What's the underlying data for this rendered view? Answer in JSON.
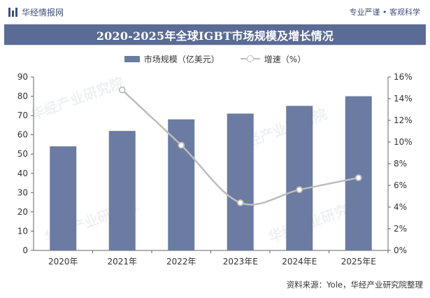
{
  "header": {
    "brand_name": "华经情报网",
    "slogan": "专业严谨 • 客观科学"
  },
  "title": "2020-2025年全球IGBT市场规模及增长情况",
  "legend": {
    "bar_label": "市场规模（亿美元）",
    "line_label": "增速（%）"
  },
  "source": "资料来源：Yole，华经产业研究院整理",
  "watermark": "华经产业研究院",
  "colors": {
    "bar": "#6b7ba2",
    "line": "#bdbdbd",
    "title_band": "#5a6b94",
    "brand": "#3f4f77"
  },
  "chart_data": {
    "type": "bar",
    "categories": [
      "2020年",
      "2021年",
      "2022年",
      "2023年E",
      "2024年E",
      "2025年E"
    ],
    "series": [
      {
        "name": "市场规模（亿美元）",
        "type": "bar",
        "axis": "left",
        "values": [
          54,
          62,
          68,
          71,
          75,
          80
        ]
      },
      {
        "name": "增速（%）",
        "type": "line",
        "axis": "right",
        "values": [
          null,
          14.8,
          9.7,
          4.4,
          5.6,
          6.7
        ]
      }
    ],
    "left_axis": {
      "ticks": [
        0,
        10,
        20,
        30,
        40,
        50,
        60,
        70,
        80,
        90
      ],
      "ylim": [
        0,
        90
      ]
    },
    "right_axis": {
      "ticks": [
        "0%",
        "2%",
        "4%",
        "6%",
        "8%",
        "10%",
        "12%",
        "14%",
        "16%"
      ],
      "ylim": [
        0,
        16
      ]
    },
    "grid": false,
    "legend_position": "top-center"
  }
}
